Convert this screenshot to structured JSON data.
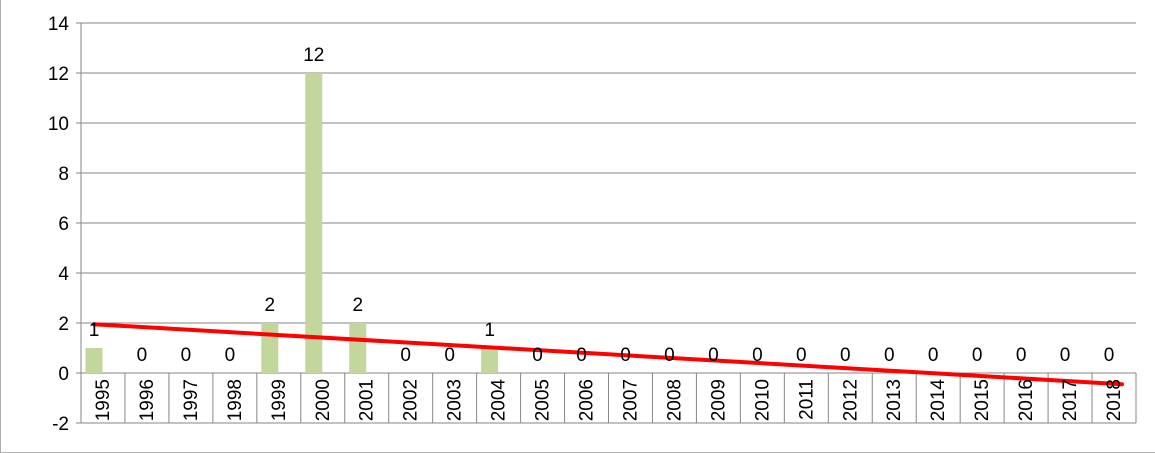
{
  "chart_data": {
    "type": "bar",
    "title": "",
    "xlabel": "",
    "ylabel": "",
    "categories": [
      "1995",
      "1996",
      "1997",
      "1998",
      "1999",
      "2000",
      "2001",
      "2002",
      "2003",
      "2004",
      "2005",
      "2006",
      "2007",
      "2008",
      "2009",
      "2010",
      "2011",
      "2012",
      "2013",
      "2014",
      "2015",
      "2016",
      "2017",
      "2018"
    ],
    "values": [
      1,
      0,
      0,
      0,
      2,
      12,
      2,
      0,
      0,
      1,
      0,
      0,
      0,
      0,
      0,
      0,
      0,
      0,
      0,
      0,
      0,
      0,
      0,
      0
    ],
    "data_labels": [
      "1",
      "0",
      "0",
      "0",
      "2",
      "12",
      "2",
      "0",
      "0",
      "1",
      "0",
      "0",
      "0",
      "0",
      "0",
      "0",
      "0",
      "0",
      "0",
      "0",
      "0",
      "0",
      "0",
      "0"
    ],
    "ylim": [
      -2,
      14
    ],
    "yticks": [
      "-2",
      "0",
      "2",
      "4",
      "6",
      "8",
      "10",
      "12",
      "14"
    ],
    "grid": true,
    "legend": "none",
    "trendline": {
      "type": "linear",
      "start": 1.95,
      "end": -0.45
    },
    "colors": {
      "bar": "#c3d69b",
      "trendline": "#ff0000",
      "grid": "#868686",
      "axis": "#868686"
    }
  }
}
